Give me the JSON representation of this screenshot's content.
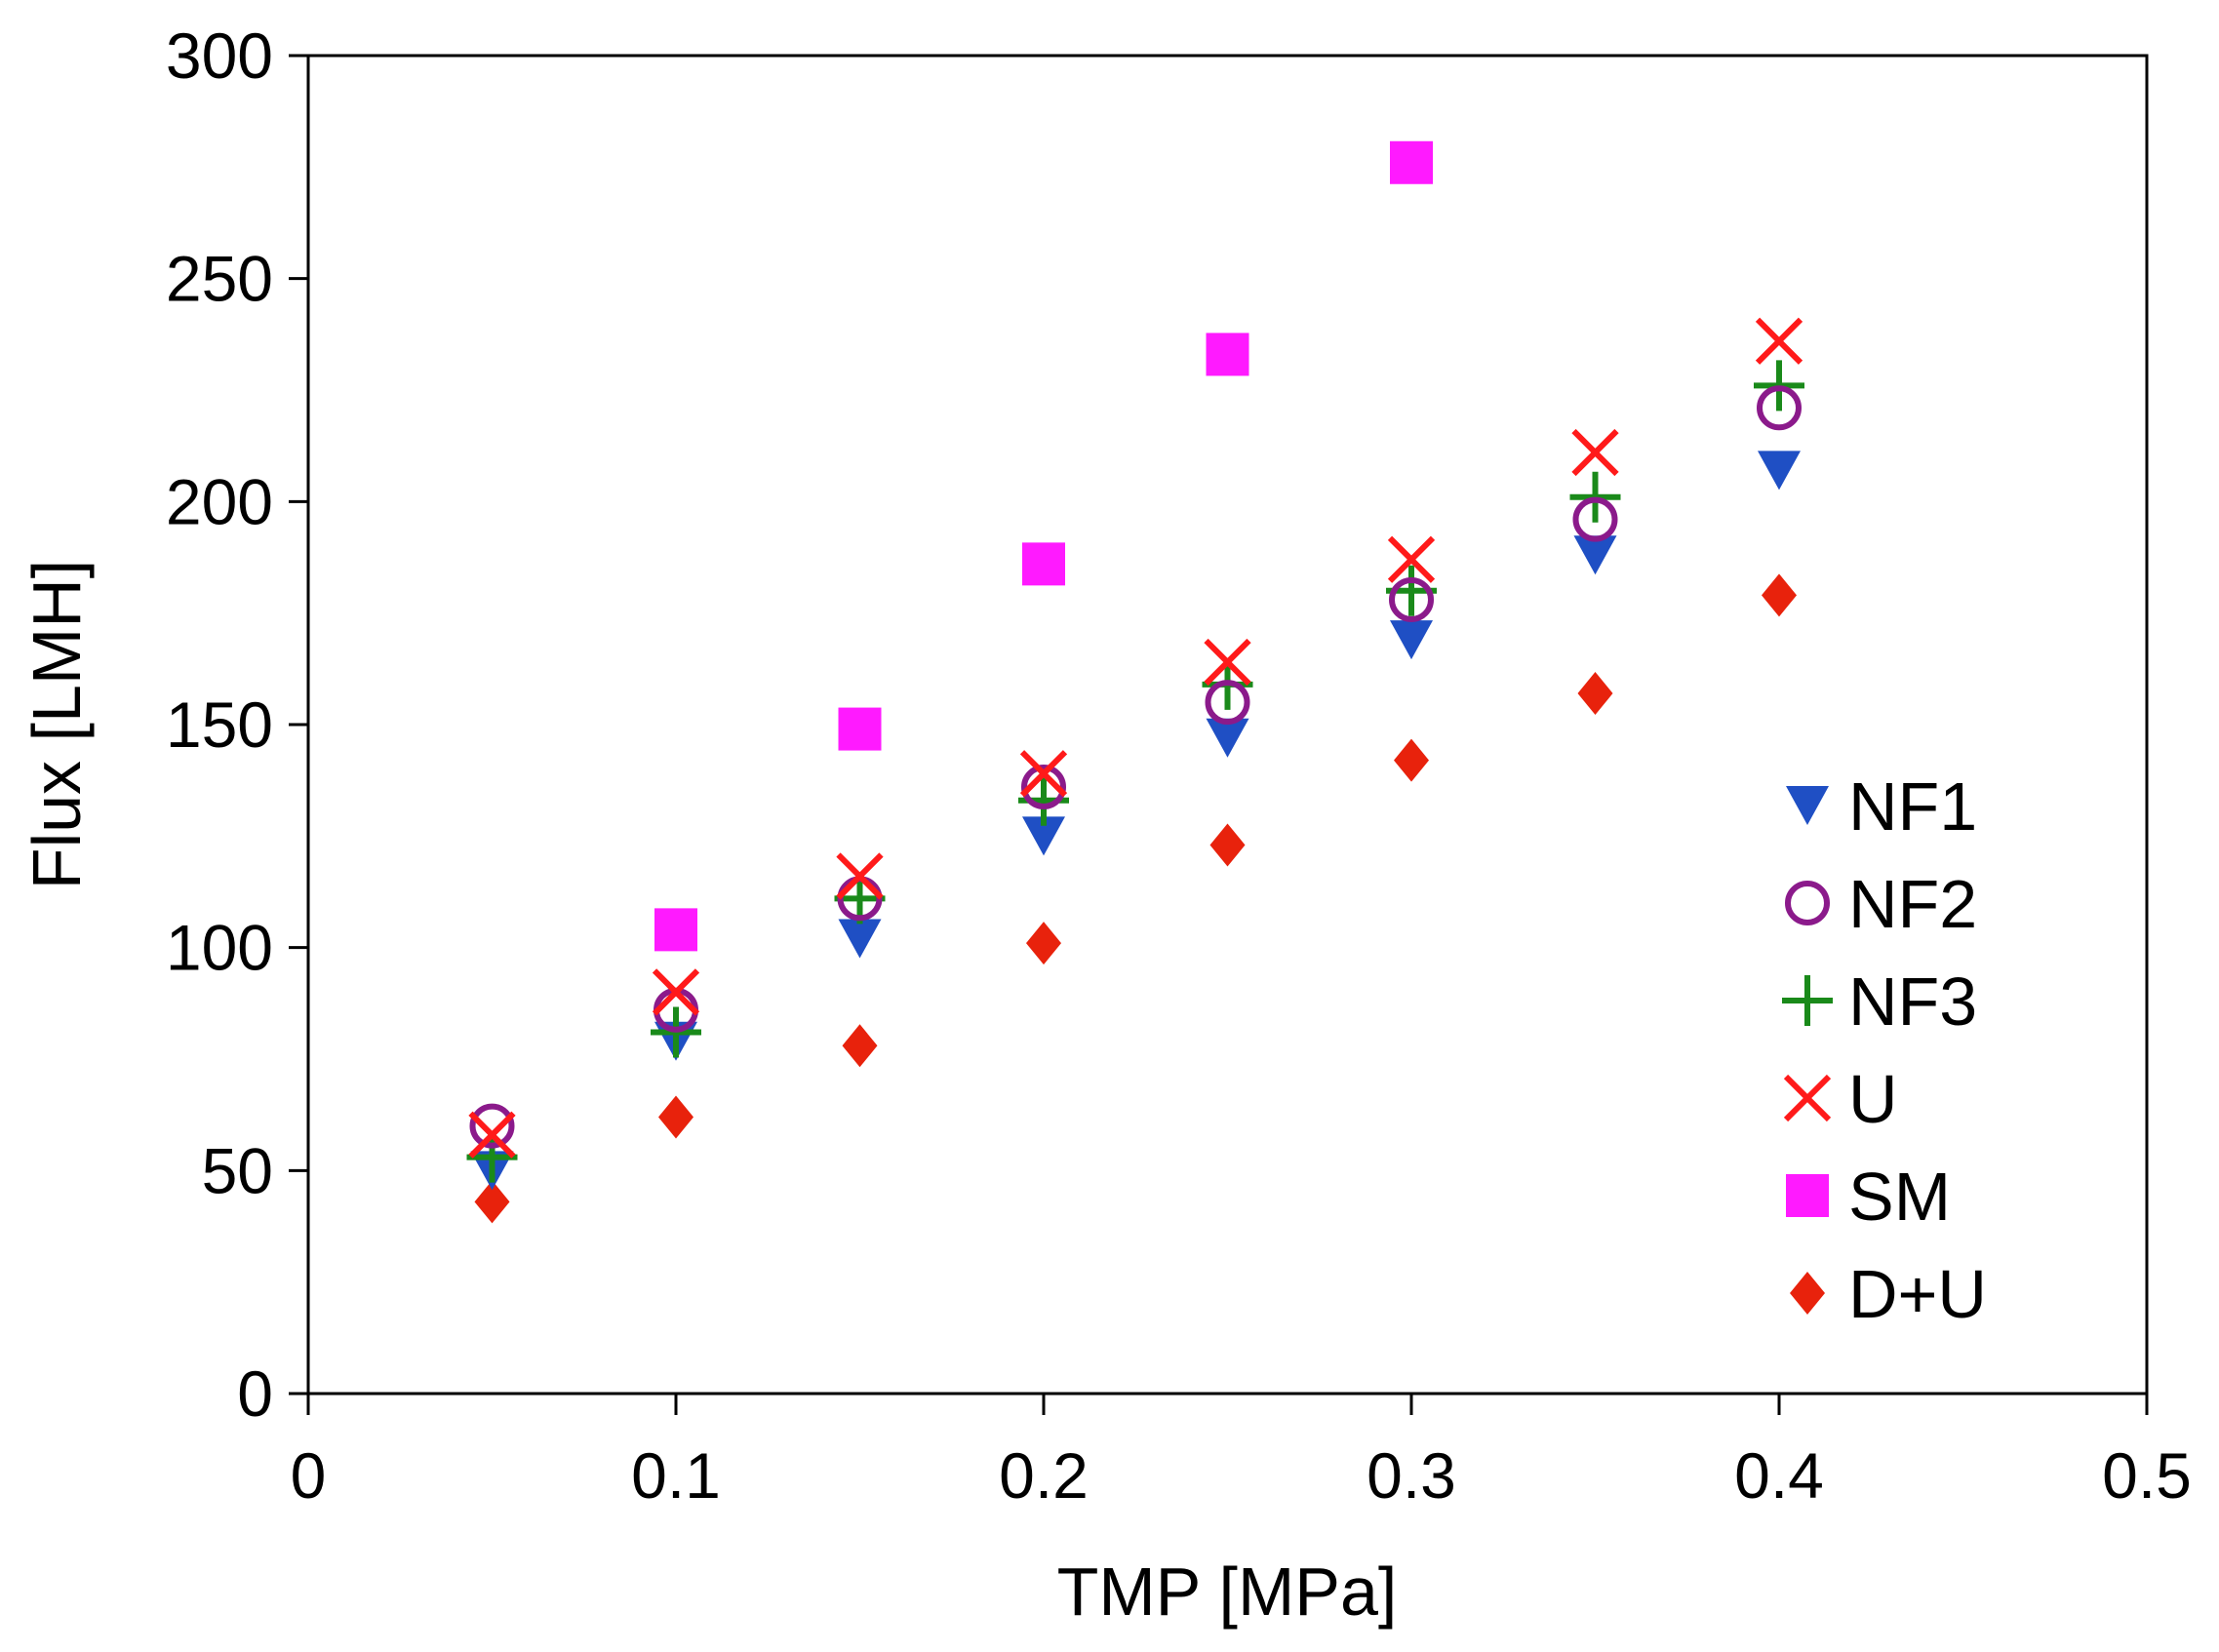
{
  "chart_data": {
    "type": "scatter",
    "title": "",
    "xlabel": "TMP [MPa]",
    "ylabel": "Flux [LMH]",
    "xlim": [
      0,
      0.5
    ],
    "ylim": [
      0,
      300
    ],
    "xticks": [
      0,
      0.1,
      0.2,
      0.3,
      0.4,
      0.5
    ],
    "xtick_labels": [
      "0",
      "0.1",
      "0.2",
      "0.3",
      "0.4",
      "0.5"
    ],
    "yticks": [
      0,
      50,
      100,
      150,
      200,
      250,
      300
    ],
    "ytick_labels": [
      "0",
      "50",
      "100",
      "150",
      "200",
      "250",
      "300"
    ],
    "grid": false,
    "legend_position": "bottom-right",
    "x": [
      0.05,
      0.1,
      0.15,
      0.2,
      0.25,
      0.3,
      0.35,
      0.4
    ],
    "series": [
      {
        "name": "NF1",
        "marker": "triangle-down",
        "color": "#1f4fc4",
        "values": [
          50,
          79,
          102,
          125,
          147,
          169,
          188,
          207
        ]
      },
      {
        "name": "NF2",
        "marker": "circle-open",
        "color": "#8b1a8b",
        "values": [
          60,
          86,
          111,
          136,
          155,
          178,
          196,
          221
        ]
      },
      {
        "name": "NF3",
        "marker": "plus",
        "color": "#1a8a1a",
        "values": [
          53,
          81,
          111,
          133,
          159,
          180,
          201,
          226
        ]
      },
      {
        "name": "U",
        "marker": "x",
        "color": "#ff1a1a",
        "values": [
          58,
          90,
          116,
          139,
          164,
          187,
          211,
          236
        ]
      },
      {
        "name": "SM",
        "marker": "square",
        "color": "#ff1aff",
        "values": [
          null,
          104,
          149,
          186,
          233,
          276,
          null,
          null
        ]
      },
      {
        "name": "D+U",
        "marker": "diamond",
        "color": "#e8220c",
        "values": [
          43,
          62,
          78,
          101,
          123,
          142,
          157,
          179
        ]
      }
    ]
  }
}
